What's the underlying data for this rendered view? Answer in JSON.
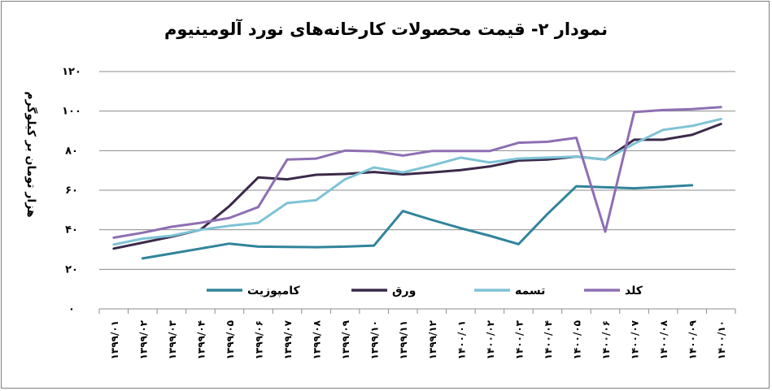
{
  "chart_data": {
    "type": "line",
    "title": "نمودار ۲- قیمت محصولات کارخانه‌های نورد آلومینیوم",
    "xlabel": "",
    "ylabel": "هزار تومان بر کیلوگرم",
    "ylim": [
      0,
      120
    ],
    "yticks": [
      0,
      20,
      40,
      60,
      80,
      100,
      120
    ],
    "ytick_labels": [
      "۰",
      "۲۰",
      "۴۰",
      "۶۰",
      "۸۰",
      "۱۰۰",
      "۱۲۰"
    ],
    "grid": true,
    "legend_position": "bottom-inside",
    "categories": [
      "۱۳۹۹/۰۱",
      "۱۳۹۹/۰۲",
      "۱۳۹۹/۰۳",
      "۱۳۹۹/۰۴",
      "۱۳۹۹/۰۵",
      "۱۳۹۹/۰۶",
      "۱۳۹۹/۰۷",
      "۱۳۹۹/۰۸",
      "۱۳۹۹/۰۹",
      "۱۳۹۹/۱۰",
      "۱۳۹۹/۱۱",
      "۱۳۹۹/۱۲",
      "۱۴۰۰/۰۱",
      "۱۴۰۰/۰۲",
      "۱۴۰۰/۰۳",
      "۱۴۰۰/۰۴",
      "۱۴۰۰/۰۵",
      "۱۴۰۰/۰۶",
      "۱۴۰۰/۰۷",
      "۱۴۰۰/۰۸",
      "۱۴۰۰/۰۹",
      "۱۴۰۰/۱۰"
    ],
    "series": [
      {
        "name": "کامپوزیت",
        "color": "#31849b",
        "values": [
          null,
          25.5,
          28,
          30.5,
          33,
          31.5,
          31.3,
          31.2,
          31.5,
          32,
          49.5,
          45,
          40.8,
          37,
          32.7,
          48,
          62,
          61.5,
          61,
          61.7,
          62.5,
          null
        ]
      },
      {
        "name": "ورق",
        "color": "#3b2a4a",
        "values": [
          30.5,
          33.5,
          36.5,
          40,
          52,
          66.5,
          65.5,
          67.8,
          68.2,
          69.2,
          68,
          69,
          70.2,
          72,
          75,
          75.5,
          77,
          75.5,
          85.5,
          85.5,
          88,
          93.5
        ]
      },
      {
        "name": "تسمه",
        "color": "#7ec3d6",
        "values": [
          32.5,
          35.5,
          37,
          40,
          42,
          43.5,
          53.5,
          55,
          65.5,
          71.5,
          69,
          72.5,
          76.5,
          74,
          76,
          76.5,
          77,
          75.5,
          83.5,
          90.5,
          92.5,
          96
        ]
      },
      {
        "name": "کلد",
        "color": "#8e6fb3",
        "values": [
          36,
          38.5,
          41.5,
          43.5,
          46,
          51.5,
          75.5,
          76,
          80,
          79.7,
          77.5,
          79.8,
          79.8,
          79.8,
          84,
          84.5,
          86.5,
          39,
          99.5,
          100.5,
          101,
          102
        ]
      }
    ]
  }
}
